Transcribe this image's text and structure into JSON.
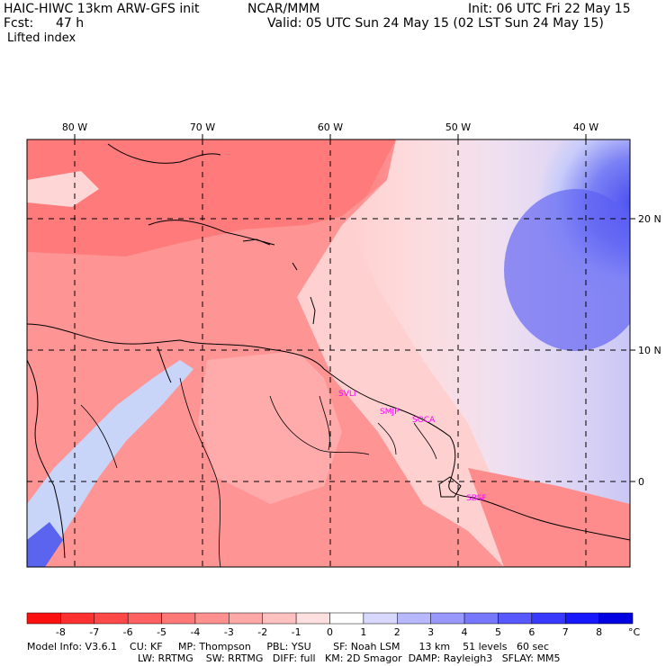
{
  "header": {
    "model": "HAIC-HIWC 13km ARW-GFS init",
    "org": "NCAR/MMM",
    "init": "Init: 06 UTC Fri 22 May 15",
    "fcst_label": "Fcst:",
    "fcst_value": "47 h",
    "valid": "Valid: 05 UTC Sun 24 May 15 (02 LST Sun 24 May 15)",
    "field": "Lifted index"
  },
  "map": {
    "lon_labels": [
      "80 W",
      "70 W",
      "60 W",
      "50 W",
      "40 W"
    ],
    "lat_labels": [
      "20 N",
      "10 N",
      "0"
    ],
    "stations": [
      "SVLI",
      "SMJP",
      "SOCA",
      "SBSF"
    ],
    "station_color": "#ff00ff"
  },
  "colorbar": {
    "ticks": [
      "-8",
      "-7",
      "-6",
      "-5",
      "-4",
      "-3",
      "-2",
      "-1",
      "0",
      "1",
      "2",
      "3",
      "4",
      "5",
      "6",
      "7",
      "8"
    ],
    "unit": "°C",
    "colors": [
      "#ff1010",
      "#ff3030",
      "#ff4848",
      "#ff6060",
      "#ff7878",
      "#ff9090",
      "#ffa8a8",
      "#ffc0c0",
      "#ffe0e0",
      "#ffffff",
      "#d8d8ff",
      "#b8b8ff",
      "#9898ff",
      "#7878ff",
      "#5858ff",
      "#3838ff",
      "#1818ff",
      "#0000e0"
    ]
  },
  "footer": {
    "line1": "Model Info: V3.6.1    CU: KF     MP: Thompson     PBL: YSU       SF: Noah LSM      13 km    51 levels   60 sec",
    "line2": "LW: RRTMG    SW: RRTMG   DIFF: full   KM: 2D Smagor  DAMP: Rayleigh3   SFLAY: MM5"
  }
}
